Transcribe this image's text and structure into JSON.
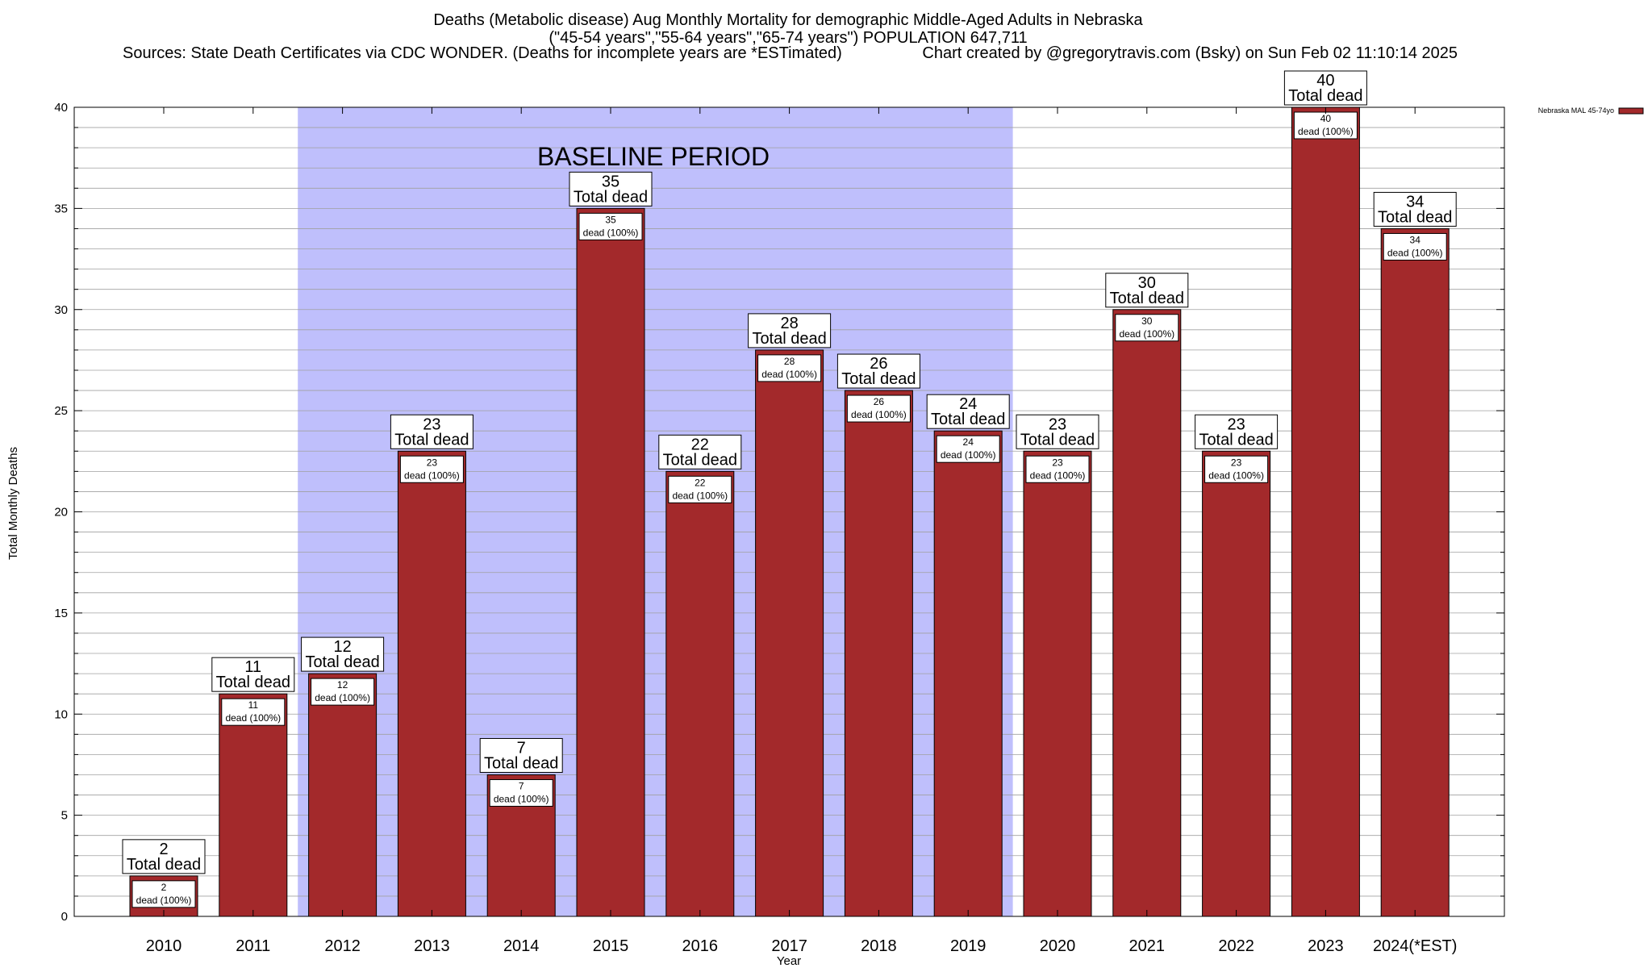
{
  "chart_data": {
    "type": "bar",
    "title_lines": [
      "Deaths (Metabolic disease) Aug Monthly Mortality for demographic Middle-Aged Adults in Nebraska",
      "(\"45-54 years\",\"55-64 years\",\"65-74 years\") POPULATION 647,711"
    ],
    "sources_text": "Sources: State Death Certificates via CDC WONDER. (Deaths for incomplete years are *ESTimated)",
    "credit_text": "Chart created by @gregorytravis.com (Bsky) on Sun Feb 02 11:10:14 2025",
    "xlabel": "Year",
    "ylabel": "Total Monthly Deaths",
    "ylim": [
      0,
      40
    ],
    "y_major_ticks": [
      0,
      5,
      10,
      15,
      20,
      25,
      30,
      35,
      40
    ],
    "y_minor_step": 1,
    "grid": true,
    "categories": [
      "2010",
      "2011",
      "2012",
      "2013",
      "2014",
      "2015",
      "2016",
      "2017",
      "2018",
      "2019",
      "2020",
      "2021",
      "2022",
      "2023",
      "2024(*EST)"
    ],
    "series": [
      {
        "name": "Nebraska MAL 45-74yo",
        "color": "#a3292b",
        "values": [
          2,
          11,
          12,
          23,
          7,
          35,
          22,
          28,
          26,
          24,
          23,
          30,
          23,
          40,
          34
        ]
      }
    ],
    "total_label": "Total dead",
    "inner_label": "dead (100%)",
    "baseline_period": {
      "label": "BASELINE PERIOD",
      "from": "2012",
      "to": "2019",
      "color": "#bfbffc"
    },
    "legend_position": "top-right"
  }
}
